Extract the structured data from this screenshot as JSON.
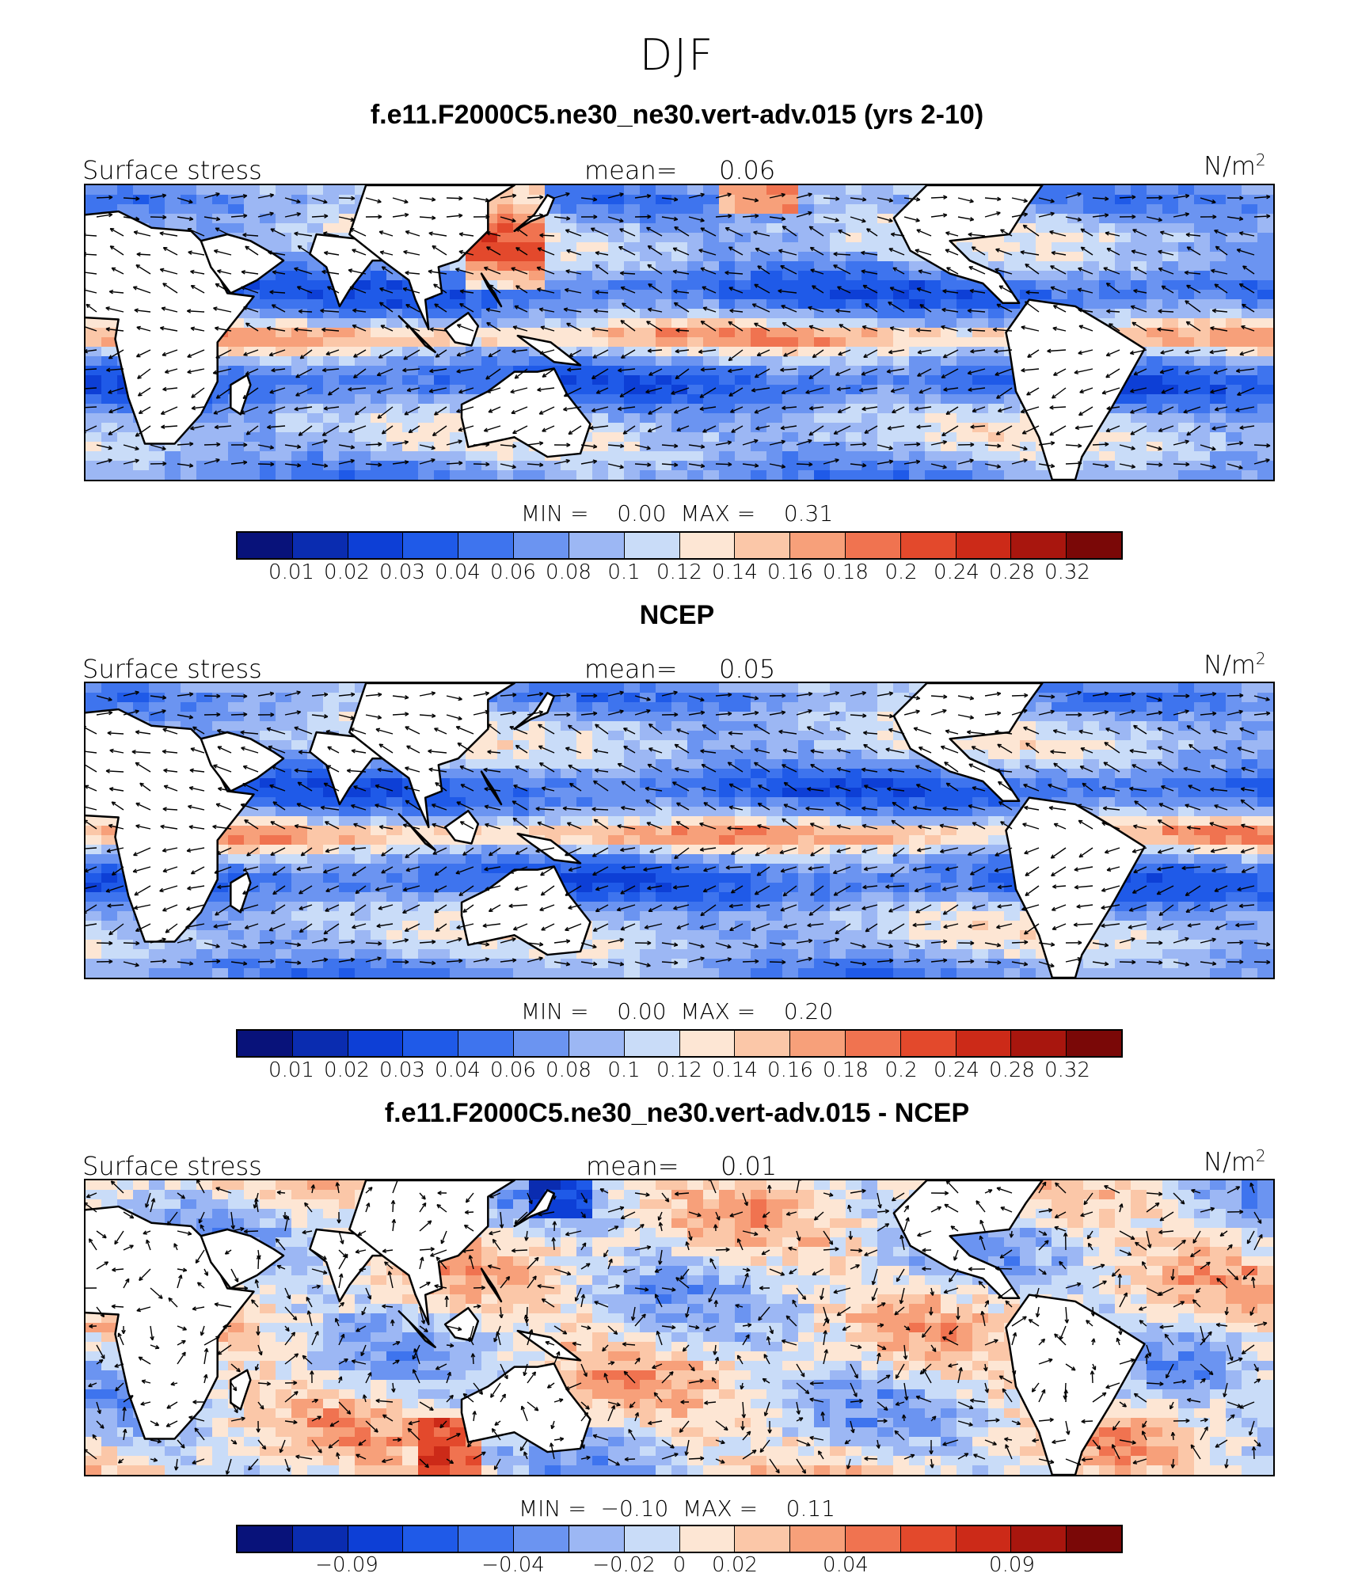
{
  "title": "DJF",
  "units_label_prefix": "N/m",
  "units_label_sup": "2",
  "field_label": "Surface stress",
  "mean_prefix": "mean=",
  "min_prefix": "MIN =",
  "max_prefix": "MAX =",
  "colors": {
    "scale": [
      "#08127a",
      "#0a2cb0",
      "#0d3fd6",
      "#1f5ae8",
      "#3e74ee",
      "#6b94f1",
      "#9cb7f4",
      "#c9dcf8",
      "#fde6d4",
      "#fbc7a8",
      "#f7a07a",
      "#f07350",
      "#e3492c",
      "#cc2a18",
      "#a8160e",
      "#7a0807"
    ],
    "land": "#ffffff",
    "coast": "#000000"
  },
  "panels": [
    {
      "title": "f.e11.F2000C5.ne30_ne30.vert-adv.015 (yrs 2-10)",
      "mean": "0.06",
      "min": "0.00",
      "max": "0.31",
      "ticks": [
        "0.01",
        "0.02",
        "0.03",
        "0.04",
        "0.06",
        "0.08",
        "0.1",
        "0.12",
        "0.14",
        "0.16",
        "0.18",
        "0.2",
        "0.24",
        "0.28",
        "0.32"
      ],
      "kind": "abs"
    },
    {
      "title": "NCEP",
      "mean": "0.05",
      "min": "0.00",
      "max": "0.20",
      "ticks": [
        "0.01",
        "0.02",
        "0.03",
        "0.04",
        "0.06",
        "0.08",
        "0.1",
        "0.12",
        "0.14",
        "0.16",
        "0.18",
        "0.2",
        "0.24",
        "0.28",
        "0.32"
      ],
      "kind": "abs"
    },
    {
      "title": "f.e11.F2000C5.ne30_ne30.vert-adv.015 - NCEP",
      "mean": "0.01",
      "min": "−0.10",
      "max": "0.11",
      "ticks": [
        "−0.09",
        "−0.04",
        "−0.02",
        "0",
        "0.02",
        "0.04",
        "0.09"
      ],
      "kind": "diff"
    }
  ]
}
